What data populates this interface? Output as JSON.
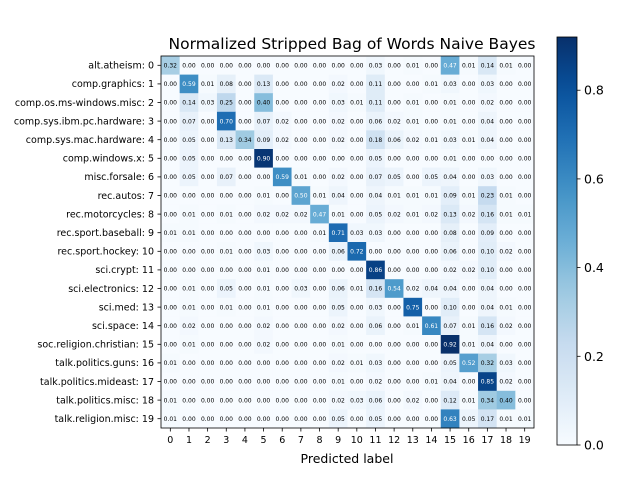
{
  "chart_data": {
    "type": "heatmap",
    "title": "Normalized Stripped Bag of Words Naive Bayes",
    "xlabel": "Predicted label",
    "ylabel": "",
    "row_labels": [
      "alt.atheism: 0",
      "comp.graphics: 1",
      "comp.os.ms-windows.misc: 2",
      "comp.sys.ibm.pc.hardware: 3",
      "comp.sys.mac.hardware: 4",
      "comp.windows.x: 5",
      "misc.forsale: 6",
      "rec.autos: 7",
      "rec.motorcycles: 8",
      "rec.sport.baseball: 9",
      "rec.sport.hockey: 10",
      "sci.crypt: 11",
      "sci.electronics: 12",
      "sci.med: 13",
      "sci.space: 14",
      "soc.religion.christian: 15",
      "talk.politics.guns: 16",
      "talk.politics.mideast: 17",
      "talk.politics.misc: 18",
      "talk.religion.misc: 19"
    ],
    "col_labels": [
      "0",
      "1",
      "2",
      "3",
      "4",
      "5",
      "6",
      "7",
      "8",
      "9",
      "10",
      "11",
      "12",
      "13",
      "14",
      "15",
      "16",
      "17",
      "18",
      "19"
    ],
    "values": [
      [
        0.32,
        0.0,
        0.0,
        0.0,
        0.0,
        0.0,
        0.0,
        0.0,
        0.0,
        0.0,
        0.0,
        0.03,
        0.0,
        0.01,
        0.0,
        0.47,
        0.01,
        0.14,
        0.01,
        0.0
      ],
      [
        0.0,
        0.59,
        0.01,
        0.08,
        0.0,
        0.13,
        0.0,
        0.0,
        0.0,
        0.02,
        0.0,
        0.11,
        0.0,
        0.0,
        0.01,
        0.03,
        0.0,
        0.03,
        0.0,
        0.0
      ],
      [
        0.0,
        0.14,
        0.03,
        0.25,
        0.0,
        0.4,
        0.0,
        0.0,
        0.0,
        0.03,
        0.01,
        0.11,
        0.0,
        0.01,
        0.0,
        0.01,
        0.0,
        0.02,
        0.0,
        0.0
      ],
      [
        0.0,
        0.07,
        0.0,
        0.7,
        0.0,
        0.07,
        0.02,
        0.0,
        0.0,
        0.02,
        0.0,
        0.06,
        0.02,
        0.01,
        0.0,
        0.01,
        0.0,
        0.04,
        0.0,
        0.0
      ],
      [
        0.0,
        0.05,
        0.0,
        0.13,
        0.34,
        0.09,
        0.02,
        0.0,
        0.0,
        0.02,
        0.0,
        0.18,
        0.06,
        0.02,
        0.01,
        0.03,
        0.01,
        0.04,
        0.0,
        0.0
      ],
      [
        0.0,
        0.05,
        0.0,
        0.0,
        0.0,
        0.9,
        0.0,
        0.0,
        0.0,
        0.0,
        0.0,
        0.05,
        0.0,
        0.0,
        0.0,
        0.01,
        0.0,
        0.0,
        0.0,
        0.0
      ],
      [
        0.0,
        0.05,
        0.0,
        0.07,
        0.0,
        0.0,
        0.59,
        0.01,
        0.0,
        0.02,
        0.0,
        0.07,
        0.05,
        0.0,
        0.05,
        0.04,
        0.0,
        0.03,
        0.0,
        0.0
      ],
      [
        0.0,
        0.0,
        0.0,
        0.0,
        0.0,
        0.01,
        0.0,
        0.5,
        0.01,
        0.04,
        0.0,
        0.04,
        0.01,
        0.01,
        0.01,
        0.09,
        0.01,
        0.23,
        0.01,
        0.0
      ],
      [
        0.0,
        0.01,
        0.0,
        0.01,
        0.0,
        0.02,
        0.02,
        0.02,
        0.47,
        0.01,
        0.0,
        0.05,
        0.02,
        0.01,
        0.02,
        0.13,
        0.02,
        0.16,
        0.01,
        0.01
      ],
      [
        0.01,
        0.01,
        0.0,
        0.0,
        0.0,
        0.0,
        0.0,
        0.0,
        0.01,
        0.71,
        0.03,
        0.03,
        0.0,
        0.0,
        0.0,
        0.08,
        0.0,
        0.09,
        0.0,
        0.0
      ],
      [
        0.0,
        0.0,
        0.0,
        0.01,
        0.0,
        0.03,
        0.0,
        0.0,
        0.0,
        0.06,
        0.72,
        0.0,
        0.0,
        0.0,
        0.0,
        0.06,
        0.0,
        0.1,
        0.02,
        0.0
      ],
      [
        0.0,
        0.0,
        0.0,
        0.0,
        0.0,
        0.01,
        0.0,
        0.0,
        0.0,
        0.0,
        0.0,
        0.86,
        0.0,
        0.0,
        0.0,
        0.02,
        0.02,
        0.1,
        0.0,
        0.0
      ],
      [
        0.0,
        0.01,
        0.0,
        0.05,
        0.0,
        0.01,
        0.0,
        0.03,
        0.0,
        0.06,
        0.01,
        0.16,
        0.54,
        0.02,
        0.04,
        0.04,
        0.0,
        0.04,
        0.0,
        0.0
      ],
      [
        0.0,
        0.01,
        0.0,
        0.01,
        0.0,
        0.01,
        0.0,
        0.0,
        0.0,
        0.05,
        0.0,
        0.03,
        0.0,
        0.75,
        0.0,
        0.1,
        0.0,
        0.04,
        0.01,
        0.0
      ],
      [
        0.0,
        0.02,
        0.0,
        0.0,
        0.0,
        0.02,
        0.0,
        0.0,
        0.0,
        0.02,
        0.0,
        0.06,
        0.0,
        0.01,
        0.61,
        0.07,
        0.01,
        0.16,
        0.02,
        0.0
      ],
      [
        0.0,
        0.01,
        0.0,
        0.0,
        0.0,
        0.02,
        0.0,
        0.0,
        0.0,
        0.01,
        0.0,
        0.0,
        0.0,
        0.0,
        0.0,
        0.92,
        0.01,
        0.04,
        0.0,
        0.0
      ],
      [
        0.01,
        0.0,
        0.0,
        0.0,
        0.0,
        0.0,
        0.0,
        0.0,
        0.0,
        0.02,
        0.01,
        0.03,
        0.0,
        0.0,
        0.0,
        0.05,
        0.52,
        0.32,
        0.03,
        0.0
      ],
      [
        0.0,
        0.0,
        0.0,
        0.0,
        0.0,
        0.0,
        0.0,
        0.0,
        0.0,
        0.01,
        0.0,
        0.02,
        0.0,
        0.0,
        0.01,
        0.04,
        0.0,
        0.85,
        0.02,
        0.0
      ],
      [
        0.01,
        0.0,
        0.0,
        0.0,
        0.0,
        0.0,
        0.0,
        0.0,
        0.0,
        0.02,
        0.03,
        0.06,
        0.0,
        0.02,
        0.0,
        0.12,
        0.01,
        0.34,
        0.4,
        0.0
      ],
      [
        0.01,
        0.0,
        0.0,
        0.0,
        0.0,
        0.0,
        0.0,
        0.0,
        0.0,
        0.05,
        0.0,
        0.05,
        0.0,
        0.0,
        0.0,
        0.63,
        0.05,
        0.17,
        0.01,
        0.01
      ]
    ],
    "colormap": "Blues",
    "vmin": 0.0,
    "vmax": 0.92,
    "colorbar_ticks": [
      "0.0",
      "0.2",
      "0.4",
      "0.6",
      "0.8"
    ],
    "colorbar_tick_values": [
      0.0,
      0.2,
      0.4,
      0.6,
      0.8
    ],
    "text_color_dark": "#000000",
    "text_color_light": "#ffffff",
    "grid": false
  }
}
